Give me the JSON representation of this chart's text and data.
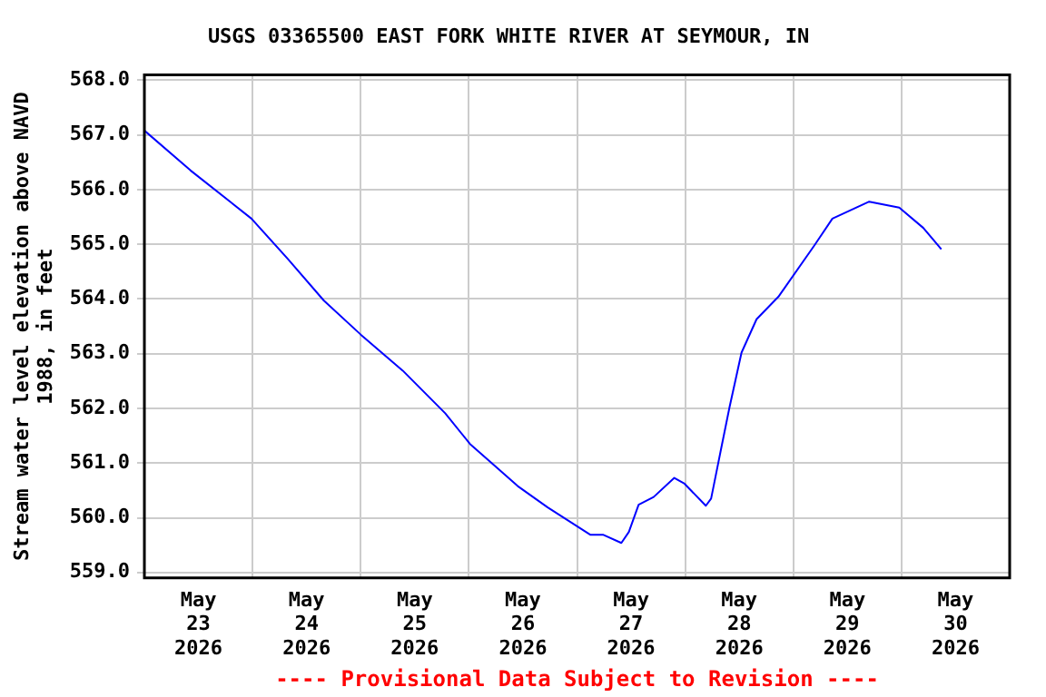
{
  "chart_data": {
    "type": "line",
    "title": "USGS 03365500 EAST FORK WHITE RIVER AT SEYMOUR, IN",
    "ylabel": "Stream water level elevation above NAVD\n1988, in feet",
    "annotations": [
      "---- Provisional Data Subject to Revision ----"
    ],
    "x": [
      "2026-05-23T00:00",
      "2026-05-23T10:15",
      "2026-05-23T23:45",
      "2026-05-24T07:45",
      "2026-05-24T15:50",
      "2026-05-25T00:00",
      "2026-05-25T09:20",
      "2026-05-25T18:45",
      "2026-05-26T00:15",
      "2026-05-26T10:50",
      "2026-05-26T17:30",
      "2026-05-27T02:55",
      "2026-05-27T05:45",
      "2026-05-27T09:50",
      "2026-05-27T11:30",
      "2026-05-27T13:40",
      "2026-05-27T17:00",
      "2026-05-27T21:35",
      "2026-05-27T23:45",
      "2026-05-28T04:35",
      "2026-05-28T05:45",
      "2026-05-28T07:55",
      "2026-05-28T09:50",
      "2026-05-28T12:30",
      "2026-05-28T15:50",
      "2026-05-28T20:40",
      "2026-05-29T04:35",
      "2026-05-29T08:40",
      "2026-05-29T16:50",
      "2026-05-29T23:30",
      "2026-05-30T04:50",
      "2026-05-30T08:50"
    ],
    "series": [
      {
        "color": "#0000ff",
        "values": [
          567.08,
          566.35,
          565.47,
          564.74,
          563.97,
          563.35,
          562.69,
          561.91,
          561.35,
          560.58,
          560.19,
          559.69,
          559.69,
          559.54,
          559.74,
          560.24,
          560.38,
          560.73,
          560.63,
          560.22,
          560.35,
          561.24,
          562.02,
          563.02,
          563.63,
          564.04,
          564.97,
          565.47,
          565.78,
          565.67,
          565.3,
          564.91
        ]
      }
    ],
    "xlim": [
      "2026-05-23",
      "2026-05-31"
    ],
    "xticks": [
      {
        "value": "2026-05-23T12:00",
        "label": "May 23 2026"
      },
      {
        "value": "2026-05-24",
        "label": null
      },
      {
        "value": "2026-05-24T12:00",
        "label": "May 24 2026"
      },
      {
        "value": "2026-05-25",
        "label": null
      },
      {
        "value": "2026-05-25T12:00",
        "label": "May 25 2026"
      },
      {
        "value": "2026-05-26",
        "label": null
      },
      {
        "value": "2026-05-26T12:00",
        "label": "May 26 2026"
      },
      {
        "value": "2026-05-27",
        "label": null
      },
      {
        "value": "2026-05-27T12:00",
        "label": "May 27 2026"
      },
      {
        "value": "2026-05-28",
        "label": null
      },
      {
        "value": "2026-05-28T12:00",
        "label": "May 28 2026"
      },
      {
        "value": "2026-05-29",
        "label": null
      },
      {
        "value": "2026-05-29T12:00",
        "label": "May 29 2026"
      },
      {
        "value": "2026-05-30",
        "label": null
      },
      {
        "value": "2026-05-30T12:00",
        "label": "May 30 2026"
      }
    ],
    "ylim": [
      558.9,
      568.1
    ],
    "yticks": [
      {
        "value": 559,
        "label": "559.0"
      },
      {
        "value": 560,
        "label": "560.0"
      },
      {
        "value": 561,
        "label": "561.0"
      },
      {
        "value": 562,
        "label": "562.0"
      },
      {
        "value": 563,
        "label": "563.0"
      },
      {
        "value": 564,
        "label": "564.0"
      },
      {
        "value": 565,
        "label": "565.0"
      },
      {
        "value": 566,
        "label": "566.0"
      },
      {
        "value": 567,
        "label": "567.0"
      },
      {
        "value": 568,
        "label": "568.0"
      }
    ],
    "grid": true,
    "legend": false,
    "marker": "none",
    "line_style": "solid"
  }
}
